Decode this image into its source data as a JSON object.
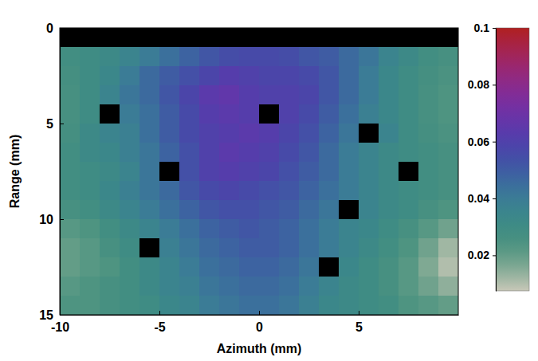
{
  "chart_data": {
    "type": "heatmap",
    "xlabel": "Azimuth (mm)",
    "ylabel": "Range (mm)",
    "xlim": [
      -10,
      10
    ],
    "ylim": [
      0,
      15
    ],
    "xticks": [
      -10,
      -5,
      0,
      5
    ],
    "yticks": [
      0,
      5,
      10,
      15
    ],
    "x_edges": [
      -10,
      -9,
      -8,
      -7,
      -6,
      -5,
      -4,
      -3,
      -2,
      -1,
      0,
      1,
      2,
      3,
      4,
      5,
      6,
      7,
      8,
      9,
      10
    ],
    "y_edges": [
      0,
      1,
      2,
      3,
      4,
      5,
      6,
      7,
      8,
      9,
      10,
      11,
      12,
      13,
      14,
      15
    ],
    "values": [
      [
        null,
        null,
        null,
        null,
        null,
        null,
        null,
        null,
        null,
        null,
        null,
        null,
        null,
        null,
        null,
        null,
        null,
        null,
        null,
        null
      ],
      [
        0.028,
        0.03,
        0.032,
        0.036,
        0.04,
        0.044,
        0.048,
        0.052,
        0.055,
        0.056,
        0.056,
        0.055,
        0.052,
        0.05,
        0.046,
        0.042,
        0.036,
        0.032,
        0.028,
        0.026
      ],
      [
        0.027,
        0.03,
        0.034,
        0.04,
        0.046,
        0.05,
        0.054,
        0.058,
        0.062,
        0.06,
        0.058,
        0.058,
        0.056,
        0.052,
        0.046,
        0.04,
        0.034,
        0.03,
        0.027,
        0.025
      ],
      [
        0.026,
        0.03,
        0.036,
        0.042,
        0.046,
        0.052,
        0.058,
        0.064,
        0.066,
        0.062,
        0.06,
        0.06,
        0.058,
        0.052,
        0.046,
        0.04,
        0.034,
        0.03,
        0.026,
        0.024
      ],
      [
        0.026,
        0.03,
        null,
        0.04,
        0.044,
        0.05,
        0.056,
        0.062,
        0.064,
        0.062,
        null,
        0.06,
        0.056,
        0.05,
        0.044,
        0.038,
        0.034,
        0.03,
        0.026,
        0.024
      ],
      [
        0.027,
        0.032,
        0.036,
        0.038,
        0.044,
        0.05,
        0.056,
        0.06,
        0.062,
        0.064,
        0.062,
        0.058,
        0.054,
        0.048,
        0.042,
        null,
        0.036,
        0.03,
        0.027,
        0.025
      ],
      [
        0.028,
        0.032,
        0.034,
        0.038,
        0.042,
        0.048,
        0.054,
        0.06,
        0.064,
        0.062,
        0.06,
        0.056,
        0.052,
        0.046,
        0.04,
        0.036,
        0.032,
        0.03,
        0.028,
        0.026
      ],
      [
        0.028,
        0.03,
        0.032,
        0.036,
        0.042,
        null,
        0.054,
        0.06,
        0.062,
        0.06,
        0.058,
        0.054,
        0.05,
        0.046,
        0.04,
        0.036,
        0.032,
        null,
        0.028,
        0.026
      ],
      [
        0.028,
        0.03,
        0.034,
        0.038,
        0.042,
        0.046,
        0.052,
        0.056,
        0.058,
        0.056,
        0.054,
        0.052,
        0.048,
        0.044,
        0.04,
        0.036,
        0.032,
        0.03,
        0.028,
        0.026
      ],
      [
        0.026,
        0.028,
        0.032,
        0.036,
        0.04,
        0.044,
        0.048,
        0.052,
        0.054,
        0.054,
        0.052,
        0.05,
        0.046,
        0.042,
        null,
        0.036,
        0.032,
        0.03,
        0.026,
        0.024
      ],
      [
        0.022,
        0.024,
        0.028,
        0.032,
        0.036,
        0.04,
        0.044,
        0.048,
        0.05,
        0.052,
        0.05,
        0.048,
        0.044,
        0.04,
        0.036,
        0.034,
        0.03,
        0.026,
        0.022,
        0.018
      ],
      [
        0.02,
        0.022,
        0.026,
        0.03,
        null,
        0.038,
        0.042,
        0.046,
        0.048,
        0.05,
        0.05,
        0.048,
        0.044,
        0.04,
        0.036,
        0.032,
        0.028,
        0.024,
        0.018,
        0.012
      ],
      [
        0.02,
        0.022,
        0.024,
        0.028,
        0.032,
        0.036,
        0.04,
        0.044,
        0.046,
        0.048,
        0.048,
        0.046,
        0.042,
        null,
        0.034,
        0.03,
        0.026,
        0.022,
        0.016,
        0.01
      ],
      [
        0.022,
        0.024,
        0.026,
        0.028,
        0.032,
        0.036,
        0.038,
        0.042,
        0.044,
        0.046,
        0.046,
        0.044,
        0.04,
        0.036,
        0.032,
        0.03,
        0.026,
        0.022,
        0.018,
        0.014
      ],
      [
        0.024,
        0.024,
        0.026,
        0.028,
        0.03,
        0.034,
        0.036,
        0.04,
        0.042,
        0.044,
        0.044,
        0.042,
        0.038,
        0.034,
        0.032,
        0.03,
        0.028,
        0.024,
        0.022,
        0.02
      ]
    ],
    "colorbar": {
      "range": [
        0.0075,
        0.1
      ],
      "ticks": [
        0.02,
        0.04,
        0.06,
        0.08,
        0.1
      ]
    }
  }
}
